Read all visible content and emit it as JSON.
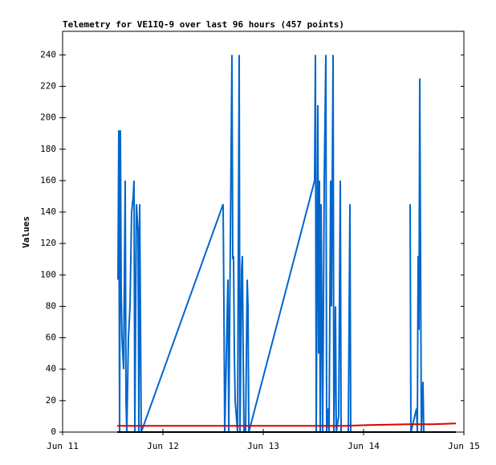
{
  "chart_data": {
    "type": "line",
    "title": "Telemetry for VE1IQ-9 over last 96 hours (457 points)",
    "y_label": "Values",
    "xlim": [
      0,
      4
    ],
    "xticks": [
      {
        "value": 0,
        "label": "Jun 11"
      },
      {
        "value": 1,
        "label": "Jun 12"
      },
      {
        "value": 2,
        "label": "Jun 13"
      },
      {
        "value": 3,
        "label": "Jun 14"
      },
      {
        "value": 4,
        "label": "Jun 15"
      }
    ],
    "ylim": [
      0,
      255
    ],
    "yticks": [
      0,
      20,
      40,
      60,
      80,
      100,
      120,
      140,
      160,
      180,
      200,
      220,
      240
    ],
    "series": [
      {
        "color": "#0066cc",
        "x": [
          0.552,
          0.56,
          0.568,
          0.576,
          0.584,
          0.592,
          0.608,
          0.624,
          0.632,
          0.64,
          0.656,
          0.672,
          0.688,
          0.704,
          0.712,
          0.72,
          0.736,
          0.752,
          0.76,
          0.768,
          0.784,
          1.6,
          1.608,
          1.616,
          1.648,
          1.656,
          1.688,
          1.696,
          1.704,
          1.712,
          1.72,
          1.744,
          1.76,
          1.768,
          1.784,
          1.792,
          1.8,
          1.808,
          1.824,
          1.84,
          1.848,
          1.856,
          2.512,
          2.52,
          2.528,
          2.544,
          2.552,
          2.56,
          2.568,
          2.576,
          2.584,
          2.592,
          2.608,
          2.624,
          2.632,
          2.648,
          2.656,
          2.672,
          2.68,
          2.696,
          2.704,
          2.72,
          2.728,
          2.752,
          2.768,
          2.776,
          2.848,
          2.864,
          2.872,
          3.2,
          3.464,
          3.472,
          3.528,
          3.536,
          3.544,
          3.552,
          3.56,
          3.568,
          3.576,
          3.592,
          3.6
        ],
        "values": [
          97,
          192,
          0,
          192,
          90,
          60,
          40,
          160,
          20,
          0,
          60,
          80,
          140,
          150,
          160,
          0,
          145,
          128,
          0,
          145,
          0,
          145,
          80,
          0,
          97,
          0,
          240,
          110,
          112,
          50,
          20,
          0,
          240,
          0,
          103,
          112,
          50,
          0,
          0,
          97,
          80,
          0,
          160,
          240,
          0,
          208,
          50,
          160,
          0,
          145,
          80,
          0,
          160,
          240,
          0,
          15,
          0,
          160,
          80,
          240,
          0,
          80,
          0,
          10,
          160,
          0,
          0,
          145,
          0,
          null,
          145,
          0,
          15,
          0,
          112,
          65,
          225,
          112,
          0,
          32,
          0
        ]
      },
      {
        "color": "#dd0000",
        "x": [
          0.544,
          2.816,
          3.056,
          3.456,
          3.696,
          3.92
        ],
        "values": [
          4,
          4,
          4.5,
          5,
          5,
          5.5
        ]
      },
      {
        "color": "#000000",
        "x": [
          0.544,
          3.92
        ],
        "values": [
          0,
          0
        ]
      }
    ]
  }
}
